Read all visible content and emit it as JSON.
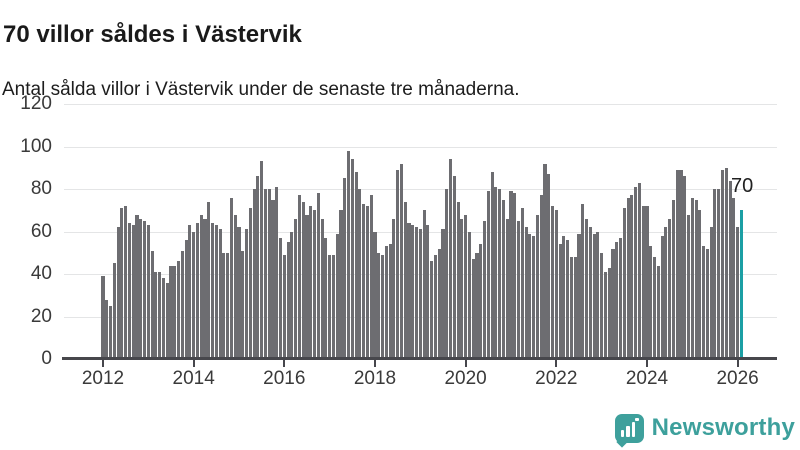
{
  "header": {
    "title": "70 villor såldes i Västervik",
    "subtitle": "Antal sålda villor i Västervik under de senaste tre månaderna."
  },
  "chart_data": {
    "type": "bar",
    "title": "70 villor såldes i Västervik",
    "subtitle": "Antal sålda villor i Västervik under de senaste tre månaderna.",
    "xlabel": "",
    "ylabel": "",
    "ylim": [
      0,
      120
    ],
    "grid": "horizontal",
    "frequency": "monthly",
    "start_month": "2012-01",
    "end_month": "2026-02",
    "y_ticks": [
      0,
      20,
      40,
      60,
      80,
      100,
      120
    ],
    "x_tick_labels": [
      "2012",
      "2014",
      "2016",
      "2018",
      "2020",
      "2022",
      "2024",
      "2026"
    ],
    "values": [
      39,
      28,
      25,
      45,
      62,
      71,
      72,
      64,
      63,
      68,
      66,
      65,
      63,
      51,
      41,
      41,
      38,
      36,
      44,
      44,
      46,
      51,
      56,
      63,
      60,
      64,
      68,
      66,
      74,
      64,
      63,
      61,
      50,
      50,
      76,
      68,
      62,
      51,
      61,
      71,
      80,
      86,
      93,
      80,
      80,
      75,
      81,
      57,
      49,
      55,
      60,
      66,
      77,
      74,
      68,
      72,
      70,
      78,
      66,
      57,
      49,
      49,
      59,
      70,
      85,
      98,
      94,
      88,
      80,
      73,
      72,
      77,
      60,
      50,
      49,
      53,
      54,
      66,
      89,
      92,
      74,
      64,
      63,
      62,
      61,
      70,
      63,
      46,
      49,
      52,
      61,
      80,
      94,
      86,
      74,
      66,
      68,
      60,
      47,
      50,
      54,
      65,
      79,
      88,
      81,
      80,
      75,
      66,
      79,
      78,
      65,
      71,
      62,
      59,
      58,
      68,
      77,
      92,
      87,
      72,
      70,
      54,
      58,
      56,
      48,
      48,
      59,
      73,
      66,
      62,
      59,
      60,
      50,
      41,
      43,
      52,
      55,
      57,
      71,
      76,
      77,
      81,
      83,
      72,
      72,
      53,
      48,
      44,
      58,
      62,
      66,
      75,
      89,
      89,
      86,
      68,
      76,
      75,
      70,
      53,
      52,
      62,
      80,
      80,
      89,
      90,
      84,
      76,
      62,
      70
    ],
    "highlight_last_bar": true,
    "annotation": {
      "label": "70",
      "value": 70
    },
    "colors": {
      "bar": "#6d6d71",
      "highlight": "#1b9fa4",
      "grid": "#e4e5e6",
      "axis": "#47474c",
      "text": "#1a1a1a",
      "tick_text": "#3a3a3a"
    }
  },
  "footer": {
    "brand": "Newsworthy",
    "logo_icon": "bar-chart-speech-bubble-icon",
    "brand_color": "#3da09c"
  }
}
